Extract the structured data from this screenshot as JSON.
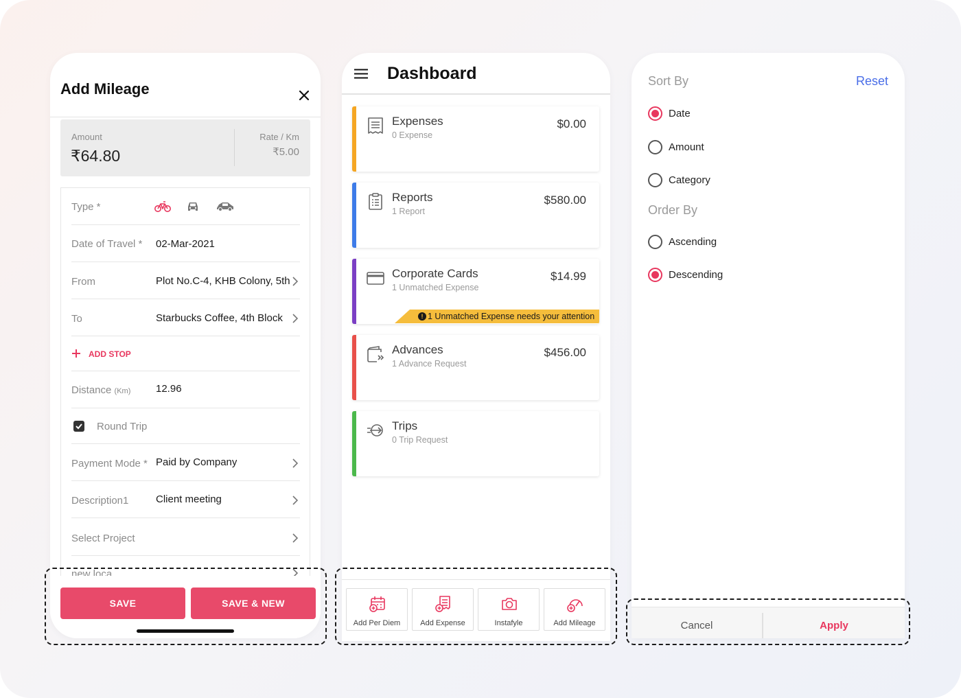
{
  "mileage": {
    "title": "Add Mileage",
    "amount_label": "Amount",
    "amount_value": "₹64.80",
    "rate_label": "Rate / Km",
    "rate_value": "₹5.00",
    "type_label": "Type *",
    "date_label": "Date of Travel *",
    "date_value": "02-Mar-2021",
    "from_label": "From",
    "from_value": "Plot No.C-4, KHB Colony, 5th",
    "to_label": "To",
    "to_value": "Starbucks Coffee, 4th Block",
    "add_stop": "ADD STOP",
    "distance_label": "Distance",
    "distance_unit": "(Km)",
    "distance_value": "12.96",
    "round_trip": "Round Trip",
    "payment_label": "Payment Mode *",
    "payment_value": "Paid by Company",
    "description_label": "Description1",
    "description_value": "Client meeting",
    "project_label": "Select Project",
    "partial_label": "new loca",
    "save": "SAVE",
    "save_new": "SAVE & NEW",
    "accent": "#e84a6a"
  },
  "dashboard": {
    "title": "Dashboard",
    "cards": [
      {
        "name": "Expenses",
        "sub": "0 Expense",
        "amount": "$0.00",
        "color": "#f5a623"
      },
      {
        "name": "Reports",
        "sub": "1 Report",
        "amount": "$580.00",
        "color": "#3d7be8"
      },
      {
        "name": "Corporate Cards",
        "sub": "1 Unmatched Expense",
        "amount": "$14.99",
        "color": "#7b3fc4",
        "alert": "1 Unmatched Expense needs your attention"
      },
      {
        "name": "Advances",
        "sub": "1 Advance Request",
        "amount": "$456.00",
        "color": "#e8504a"
      },
      {
        "name": "Trips",
        "sub": "0 Trip Request",
        "amount": "",
        "color": "#4bb84b"
      }
    ],
    "actions": [
      "Add Per Diem",
      "Add Expense",
      "Instafyle",
      "Add Mileage"
    ]
  },
  "sort": {
    "sort_by": "Sort By",
    "reset": "Reset",
    "sort_options": [
      "Date",
      "Amount",
      "Category"
    ],
    "sort_selected": "Date",
    "order_by": "Order By",
    "order_options": [
      "Ascending",
      "Descending"
    ],
    "order_selected": "Descending",
    "cancel": "Cancel",
    "apply": "Apply"
  }
}
